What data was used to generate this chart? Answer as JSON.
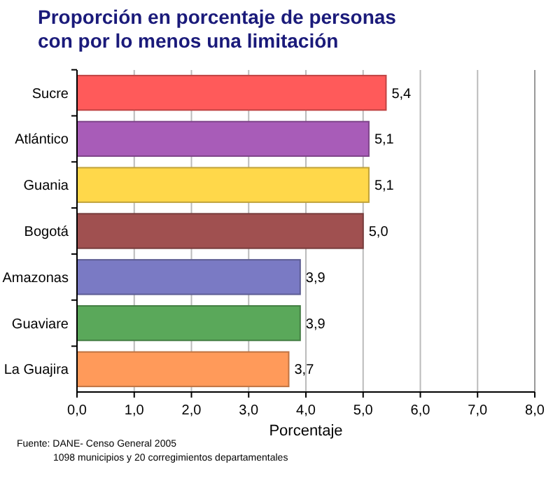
{
  "chart_data": {
    "type": "bar",
    "orientation": "horizontal",
    "title": "Proporción en porcentaje de personas con por lo menos una limitación",
    "xlabel": "Porcentaje",
    "categories": [
      "Sucre",
      "Atlántico",
      "Guania",
      "Bogotá",
      "Amazonas",
      "Guaviare",
      "La Guajira"
    ],
    "values": [
      5.4,
      5.1,
      5.1,
      5.0,
      3.9,
      3.9,
      3.7
    ],
    "colors": [
      "#ff5a5a",
      "#a85cb8",
      "#ffd84a",
      "#a05050",
      "#7a7ac4",
      "#5aa85a",
      "#ff9a5a"
    ],
    "value_labels": [
      "5,4",
      "5,1",
      "5,1",
      "5,0",
      "3,9",
      "3,9",
      "3,7"
    ],
    "xlim": [
      0,
      8
    ],
    "xticks": [
      {
        "value": 0,
        "label": "0,0"
      },
      {
        "value": 1,
        "label": "1,0"
      },
      {
        "value": 2,
        "label": "2,0"
      },
      {
        "value": 3,
        "label": "3,0"
      },
      {
        "value": 4,
        "label": "4,0"
      },
      {
        "value": 5,
        "label": "5,0"
      },
      {
        "value": 6,
        "label": "6,0"
      },
      {
        "value": 7,
        "label": "7,0"
      },
      {
        "value": 8,
        "label": "8,0"
      }
    ],
    "grid": "x",
    "annotations": [
      "Fuente: DANE- Censo General 2005",
      "1098 municipios y 20 corregimientos departamentales"
    ]
  }
}
